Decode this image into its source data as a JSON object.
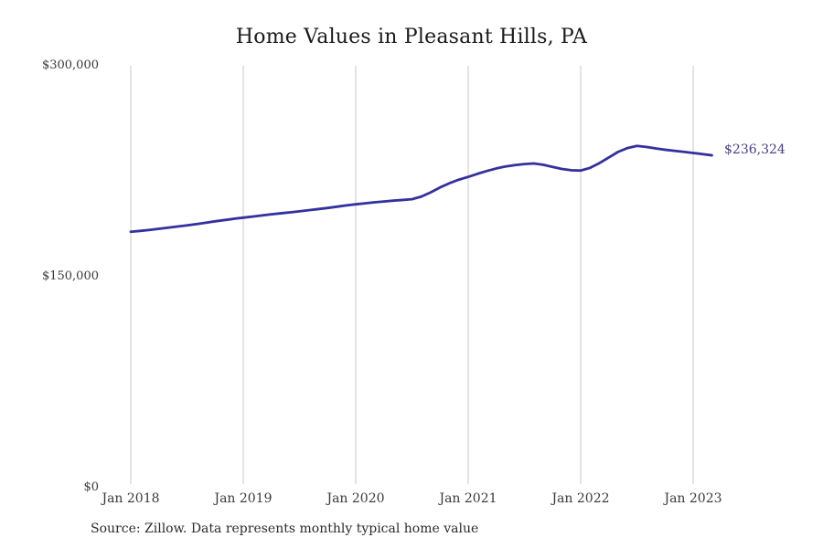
{
  "title": "Home Values in Pleasant Hills, PA",
  "source_note": "Source: Zillow. Data represents monthly typical home value",
  "end_label": "$236,324",
  "colors": {
    "line": "#34309d",
    "grid": "#c9c9c9",
    "title_text": "#1a1a1a",
    "axis_text": "#3a3a3a",
    "end_label_text": "#413e82",
    "background": "#ffffff"
  },
  "chart_data": {
    "type": "line",
    "title": "Home Values in Pleasant Hills, PA",
    "xlabel": "",
    "ylabel": "",
    "ylim": [
      0,
      300000
    ],
    "grid": "vertical-only",
    "legend": "none",
    "y_ticks": [
      {
        "label": "$300,000",
        "value": 300000
      },
      {
        "label": "$150,000",
        "value": 150000
      },
      {
        "label": "$0",
        "value": 0
      }
    ],
    "x_ticks": [
      {
        "label": "Jan 2018",
        "month_index": 0
      },
      {
        "label": "Jan 2019",
        "month_index": 12
      },
      {
        "label": "Jan 2020",
        "month_index": 24
      },
      {
        "label": "Jan 2021",
        "month_index": 36
      },
      {
        "label": "Jan 2022",
        "month_index": 48
      },
      {
        "label": "Jan 2023",
        "month_index": 60
      }
    ],
    "series": [
      {
        "name": "Typical home value",
        "months": [
          "2018-01",
          "2018-02",
          "2018-03",
          "2018-04",
          "2018-05",
          "2018-06",
          "2018-07",
          "2018-08",
          "2018-09",
          "2018-10",
          "2018-11",
          "2018-12",
          "2019-01",
          "2019-02",
          "2019-03",
          "2019-04",
          "2019-05",
          "2019-06",
          "2019-07",
          "2019-08",
          "2019-09",
          "2019-10",
          "2019-11",
          "2019-12",
          "2020-01",
          "2020-02",
          "2020-03",
          "2020-04",
          "2020-05",
          "2020-06",
          "2020-07",
          "2020-08",
          "2020-09",
          "2020-10",
          "2020-11",
          "2020-12",
          "2021-01",
          "2021-02",
          "2021-03",
          "2021-04",
          "2021-05",
          "2021-06",
          "2021-07",
          "2021-08",
          "2021-09",
          "2021-10",
          "2021-11",
          "2021-12",
          "2022-01",
          "2022-02",
          "2022-03",
          "2022-04",
          "2022-05",
          "2022-06",
          "2022-07",
          "2022-08",
          "2022-09",
          "2022-10",
          "2022-11",
          "2022-12",
          "2023-01",
          "2023-02",
          "2023-03"
        ],
        "values": [
          182000,
          182600,
          183300,
          184100,
          184900,
          185700,
          186500,
          187400,
          188400,
          189400,
          190300,
          191200,
          192000,
          192800,
          193600,
          194400,
          195100,
          195800,
          196500,
          197300,
          198100,
          198900,
          199800,
          200700,
          201500,
          202200,
          202900,
          203500,
          204100,
          204600,
          205100,
          207000,
          210000,
          213500,
          216500,
          219000,
          221000,
          223200,
          225200,
          227000,
          228400,
          229400,
          230100,
          230500,
          229600,
          228100,
          226600,
          225700,
          225500,
          227400,
          230800,
          234800,
          238800,
          241500,
          243000,
          242300,
          241200,
          240300,
          239500,
          238800,
          238000,
          237200,
          236324
        ]
      }
    ],
    "end_point_label": "$236,324"
  }
}
